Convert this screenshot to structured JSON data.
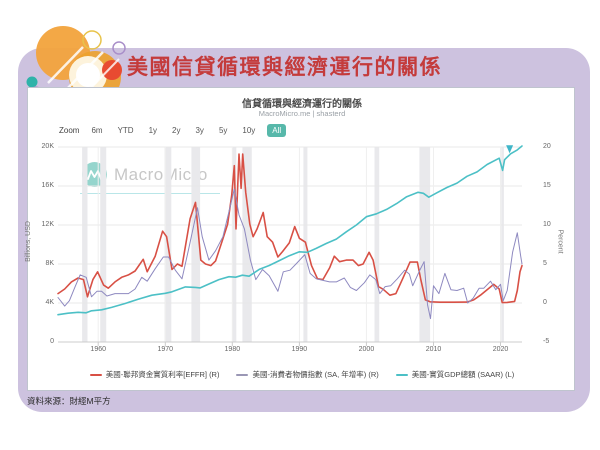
{
  "slide": {
    "title": "美國信貸循環與經濟運行的關係",
    "source": "資料來源：財經M平方",
    "accent_color": "#c43b3b",
    "panel_color": "#cdc2df"
  },
  "chart": {
    "title": "信貸循環與經濟運行的關係",
    "subtitle": "MacroMicro.me | shasterd",
    "watermark_text": "MacroMicro",
    "toolbar": {
      "zoom_label": "Zoom",
      "ranges": [
        "6m",
        "YTD",
        "1y",
        "2y",
        "3y",
        "5y",
        "10y",
        "All"
      ],
      "active_range": "All",
      "active_color": "#57b8aa"
    }
  },
  "chart_data": {
    "type": "line",
    "title": "信貸循環與經濟運行的關係",
    "x_domain": [
      1954,
      2023.2
    ],
    "x_ticks": [
      1960,
      1970,
      1980,
      1990,
      2000,
      2010,
      2020
    ],
    "left_axis": {
      "label": "Billions, USD",
      "ticks": [
        "0",
        "4K",
        "8K",
        "12K",
        "16K",
        "20K"
      ],
      "lim": [
        0,
        20000
      ]
    },
    "right_axis": {
      "label": "Percent",
      "ticks": [
        "-5",
        "0",
        "5",
        "10",
        "15",
        "20"
      ],
      "lim": [
        -5,
        20
      ]
    },
    "grid": true,
    "legend_position": "bottom",
    "recessions": [
      [
        1957.6,
        1958.4
      ],
      [
        1960.3,
        1961.2
      ],
      [
        1969.9,
        1970.9
      ],
      [
        1973.9,
        1975.2
      ],
      [
        1980.0,
        1980.6
      ],
      [
        1981.5,
        1982.9
      ],
      [
        1990.6,
        1991.2
      ],
      [
        2001.2,
        2001.9
      ],
      [
        2007.9,
        2009.5
      ],
      [
        2020.1,
        2020.5
      ]
    ],
    "series": [
      {
        "name": "美國-聯邦資金實質利率[EFFR] (R)",
        "axis": "right",
        "unit": "%",
        "color": "#d85045",
        "legend_color": "#d85045",
        "width": 1.6,
        "points": [
          [
            1954,
            1.2
          ],
          [
            1955,
            1.8
          ],
          [
            1956,
            2.7
          ],
          [
            1957,
            3.2
          ],
          [
            1957.8,
            3.0
          ],
          [
            1958.4,
            0.8
          ],
          [
            1959.2,
            3.0
          ],
          [
            1959.9,
            4.0
          ],
          [
            1960.8,
            2.3
          ],
          [
            1961.5,
            1.9
          ],
          [
            1962.5,
            2.7
          ],
          [
            1963.5,
            3.3
          ],
          [
            1964.5,
            3.6
          ],
          [
            1965.5,
            4.1
          ],
          [
            1966.7,
            5.6
          ],
          [
            1967.3,
            4.0
          ],
          [
            1968.5,
            6.0
          ],
          [
            1969.6,
            9.2
          ],
          [
            1970.2,
            8.5
          ],
          [
            1971.0,
            4.3
          ],
          [
            1971.8,
            5.0
          ],
          [
            1972.5,
            4.7
          ],
          [
            1973.7,
            10.8
          ],
          [
            1974.5,
            12.9
          ],
          [
            1975.3,
            5.5
          ],
          [
            1976.0,
            5.0
          ],
          [
            1976.8,
            4.8
          ],
          [
            1977.5,
            5.4
          ],
          [
            1978.5,
            8.0
          ],
          [
            1979.3,
            10.1
          ],
          [
            1979.9,
            13.8
          ],
          [
            1980.3,
            17.6
          ],
          [
            1980.55,
            9.5
          ],
          [
            1981.0,
            19.1
          ],
          [
            1981.3,
            14.7
          ],
          [
            1981.55,
            19.1
          ],
          [
            1982.0,
            14.2
          ],
          [
            1982.6,
            10.1
          ],
          [
            1983.1,
            8.5
          ],
          [
            1983.7,
            9.5
          ],
          [
            1984.6,
            11.6
          ],
          [
            1985.2,
            8.5
          ],
          [
            1986.0,
            7.8
          ],
          [
            1986.8,
            5.9
          ],
          [
            1987.5,
            6.6
          ],
          [
            1988.5,
            7.7
          ],
          [
            1989.3,
            9.8
          ],
          [
            1990.0,
            8.3
          ],
          [
            1990.9,
            7.8
          ],
          [
            1991.8,
            4.8
          ],
          [
            1992.7,
            3.1
          ],
          [
            1993.5,
            3.0
          ],
          [
            1994.5,
            4.5
          ],
          [
            1995.2,
            6.0
          ],
          [
            1996.0,
            5.3
          ],
          [
            1997.0,
            5.5
          ],
          [
            1998.0,
            5.5
          ],
          [
            1998.8,
            4.8
          ],
          [
            1999.5,
            5.0
          ],
          [
            2000.4,
            6.5
          ],
          [
            2001.0,
            5.5
          ],
          [
            2001.8,
            2.1
          ],
          [
            2002.5,
            1.75
          ],
          [
            2003.5,
            1.0
          ],
          [
            2004.4,
            1.2
          ],
          [
            2005.5,
            3.3
          ],
          [
            2006.5,
            5.25
          ],
          [
            2007.6,
            5.25
          ],
          [
            2008.1,
            3.0
          ],
          [
            2008.8,
            0.4
          ],
          [
            2009.5,
            0.15
          ],
          [
            2011,
            0.1
          ],
          [
            2013,
            0.1
          ],
          [
            2015,
            0.12
          ],
          [
            2016,
            0.4
          ],
          [
            2017,
            1.0
          ],
          [
            2018,
            1.7
          ],
          [
            2019.0,
            2.4
          ],
          [
            2019.8,
            1.8
          ],
          [
            2020.25,
            0.05
          ],
          [
            2021,
            0.08
          ],
          [
            2022.1,
            0.2
          ],
          [
            2022.5,
            1.6
          ],
          [
            2022.9,
            4.0
          ],
          [
            2023.2,
            4.8
          ]
        ]
      },
      {
        "name": "美國-消費者物價指數 (SA, 年增率) (R)",
        "axis": "right",
        "unit": "%",
        "color": "#8e89c0",
        "legend_color": "#9a97b5",
        "width": 1,
        "points": [
          [
            1954,
            0.7
          ],
          [
            1955,
            -0.4
          ],
          [
            1955.7,
            0.3
          ],
          [
            1956.5,
            2.0
          ],
          [
            1957.3,
            3.6
          ],
          [
            1958.2,
            3.3
          ],
          [
            1959.0,
            0.8
          ],
          [
            1959.8,
            1.5
          ],
          [
            1960.5,
            1.5
          ],
          [
            1961.3,
            0.9
          ],
          [
            1962.5,
            1.2
          ],
          [
            1963.5,
            1.2
          ],
          [
            1964.5,
            1.2
          ],
          [
            1965.5,
            1.8
          ],
          [
            1966.5,
            3.3
          ],
          [
            1967.3,
            2.8
          ],
          [
            1968.5,
            4.4
          ],
          [
            1969.7,
            5.9
          ],
          [
            1970.5,
            5.9
          ],
          [
            1971.5,
            4.2
          ],
          [
            1972.5,
            3.1
          ],
          [
            1973.5,
            7.0
          ],
          [
            1974.8,
            12.2
          ],
          [
            1975.5,
            8.5
          ],
          [
            1976.5,
            5.5
          ],
          [
            1977.5,
            6.7
          ],
          [
            1978.6,
            8.5
          ],
          [
            1979.8,
            12.8
          ],
          [
            1980.3,
            14.6
          ],
          [
            1981.0,
            11.3
          ],
          [
            1981.8,
            9.5
          ],
          [
            1982.7,
            5.5
          ],
          [
            1983.5,
            3.0
          ],
          [
            1984.5,
            4.3
          ],
          [
            1985.5,
            3.5
          ],
          [
            1986.8,
            1.5
          ],
          [
            1987.6,
            4.0
          ],
          [
            1988.6,
            4.2
          ],
          [
            1989.5,
            5.0
          ],
          [
            1990.8,
            6.2
          ],
          [
            1991.6,
            3.8
          ],
          [
            1992.5,
            3.1
          ],
          [
            1993.5,
            2.9
          ],
          [
            1994.5,
            2.7
          ],
          [
            1995.5,
            2.7
          ],
          [
            1996.7,
            3.2
          ],
          [
            1997.6,
            2.0
          ],
          [
            1998.5,
            1.6
          ],
          [
            1999.7,
            2.6
          ],
          [
            2000.5,
            3.6
          ],
          [
            2001.4,
            3.0
          ],
          [
            2002.0,
            1.2
          ],
          [
            2002.8,
            2.1
          ],
          [
            2003.6,
            2.2
          ],
          [
            2004.6,
            3.1
          ],
          [
            2005.7,
            4.2
          ],
          [
            2006.4,
            3.7
          ],
          [
            2006.9,
            2.2
          ],
          [
            2007.9,
            4.1
          ],
          [
            2008.6,
            5.3
          ],
          [
            2009.1,
            -0.2
          ],
          [
            2009.55,
            -2.0
          ],
          [
            2010.0,
            2.2
          ],
          [
            2010.8,
            1.2
          ],
          [
            2011.7,
            3.8
          ],
          [
            2012.6,
            1.7
          ],
          [
            2013.5,
            1.6
          ],
          [
            2014.5,
            1.9
          ],
          [
            2015.1,
            0.0
          ],
          [
            2015.9,
            0.6
          ],
          [
            2016.8,
            1.9
          ],
          [
            2017.5,
            1.9
          ],
          [
            2018.5,
            2.8
          ],
          [
            2019.3,
            1.7
          ],
          [
            2020.0,
            2.4
          ],
          [
            2020.4,
            0.3
          ],
          [
            2021.0,
            1.6
          ],
          [
            2021.8,
            6.5
          ],
          [
            2022.5,
            9.0
          ],
          [
            2023.0,
            6.0
          ],
          [
            2023.2,
            5.0
          ]
        ]
      },
      {
        "name": "美國-實質GDP總額 (SAAR) (L)",
        "axis": "left",
        "unit": "Billions USD",
        "color": "#4cc0c6",
        "legend_color": "#4cc0c6",
        "width": 1.6,
        "points": [
          [
            1954,
            2800
          ],
          [
            1955.5,
            2950
          ],
          [
            1957,
            3050
          ],
          [
            1958.2,
            3000
          ],
          [
            1959,
            3200
          ],
          [
            1960.5,
            3300
          ],
          [
            1962,
            3550
          ],
          [
            1964,
            3950
          ],
          [
            1966,
            4400
          ],
          [
            1968,
            4800
          ],
          [
            1970,
            5000
          ],
          [
            1971,
            5150
          ],
          [
            1973,
            5650
          ],
          [
            1974.5,
            5600
          ],
          [
            1975.2,
            5550
          ],
          [
            1976.5,
            5950
          ],
          [
            1978,
            6400
          ],
          [
            1979.5,
            6700
          ],
          [
            1980.5,
            6650
          ],
          [
            1981.5,
            6850
          ],
          [
            1982.5,
            6750
          ],
          [
            1984,
            7450
          ],
          [
            1985.5,
            7850
          ],
          [
            1987,
            8350
          ],
          [
            1988.5,
            8850
          ],
          [
            1990,
            9250
          ],
          [
            1991.2,
            9200
          ],
          [
            1992.5,
            9600
          ],
          [
            1994,
            10100
          ],
          [
            1995.5,
            10550
          ],
          [
            1997,
            11300
          ],
          [
            1998.5,
            12000
          ],
          [
            2000,
            12850
          ],
          [
            2001.5,
            13150
          ],
          [
            2003,
            13600
          ],
          [
            2004.5,
            14200
          ],
          [
            2006,
            14900
          ],
          [
            2007.7,
            15350
          ],
          [
            2008.5,
            15250
          ],
          [
            2009.3,
            14850
          ],
          [
            2010.5,
            15300
          ],
          [
            2012,
            15850
          ],
          [
            2013.5,
            16300
          ],
          [
            2015,
            17000
          ],
          [
            2016.5,
            17450
          ],
          [
            2018,
            18200
          ],
          [
            2019.8,
            18850
          ],
          [
            2020.3,
            17600
          ],
          [
            2020.6,
            18700
          ],
          [
            2021.5,
            19300
          ],
          [
            2022.5,
            19700
          ],
          [
            2023.2,
            20100
          ]
        ]
      }
    ],
    "marker": {
      "x": 2021.35,
      "y_right": 19.2,
      "color": "#3fb6c9"
    }
  }
}
